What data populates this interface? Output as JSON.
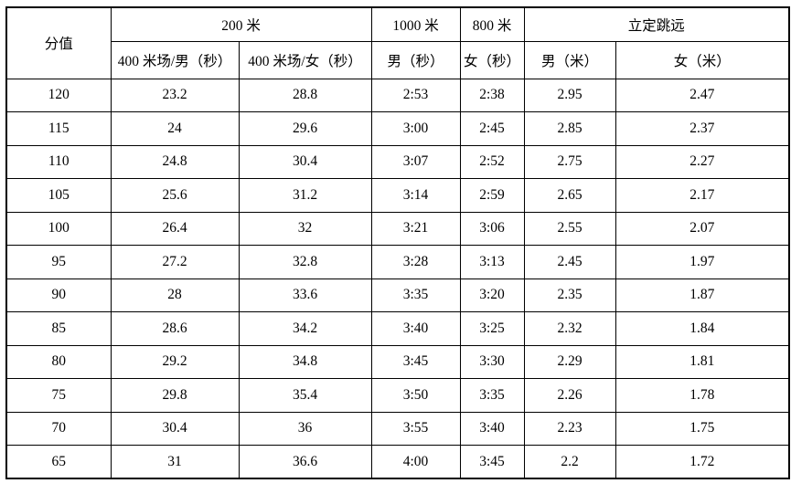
{
  "colors": {
    "border": "#000000",
    "text": "#000000",
    "background": "#ffffff"
  },
  "table": {
    "header": {
      "score_label": "分值",
      "group_200m": "200 米",
      "col_200m_male": "400 米场/男（秒）",
      "col_200m_female": "400 米场/女（秒）",
      "group_1000m": "1000 米",
      "col_1000m_male": "男（秒）",
      "group_800m": "800 米",
      "col_800m_female": "女（秒）",
      "group_jump": "立定跳远",
      "col_jump_male": "男（米）",
      "col_jump_female": "女（米）"
    },
    "column_names": [
      "cell-score",
      "cell-200m-male",
      "cell-200m-female",
      "cell-1000m-male",
      "cell-800m-female",
      "cell-jump-male",
      "cell-jump-female"
    ],
    "rows": [
      [
        "120",
        "23.2",
        "28.8",
        "2:53",
        "2:38",
        "2.95",
        "2.47"
      ],
      [
        "115",
        "24",
        "29.6",
        "3:00",
        "2:45",
        "2.85",
        "2.37"
      ],
      [
        "110",
        "24.8",
        "30.4",
        "3:07",
        "2:52",
        "2.75",
        "2.27"
      ],
      [
        "105",
        "25.6",
        "31.2",
        "3:14",
        "2:59",
        "2.65",
        "2.17"
      ],
      [
        "100",
        "26.4",
        "32",
        "3:21",
        "3:06",
        "2.55",
        "2.07"
      ],
      [
        "95",
        "27.2",
        "32.8",
        "3:28",
        "3:13",
        "2.45",
        "1.97"
      ],
      [
        "90",
        "28",
        "33.6",
        "3:35",
        "3:20",
        "2.35",
        "1.87"
      ],
      [
        "85",
        "28.6",
        "34.2",
        "3:40",
        "3:25",
        "2.32",
        "1.84"
      ],
      [
        "80",
        "29.2",
        "34.8",
        "3:45",
        "3:30",
        "2.29",
        "1.81"
      ],
      [
        "75",
        "29.8",
        "35.4",
        "3:50",
        "3:35",
        "2.26",
        "1.78"
      ],
      [
        "70",
        "30.4",
        "36",
        "3:55",
        "3:40",
        "2.23",
        "1.75"
      ],
      [
        "65",
        "31",
        "36.6",
        "4:00",
        "3:45",
        "2.2",
        "1.72"
      ]
    ]
  }
}
